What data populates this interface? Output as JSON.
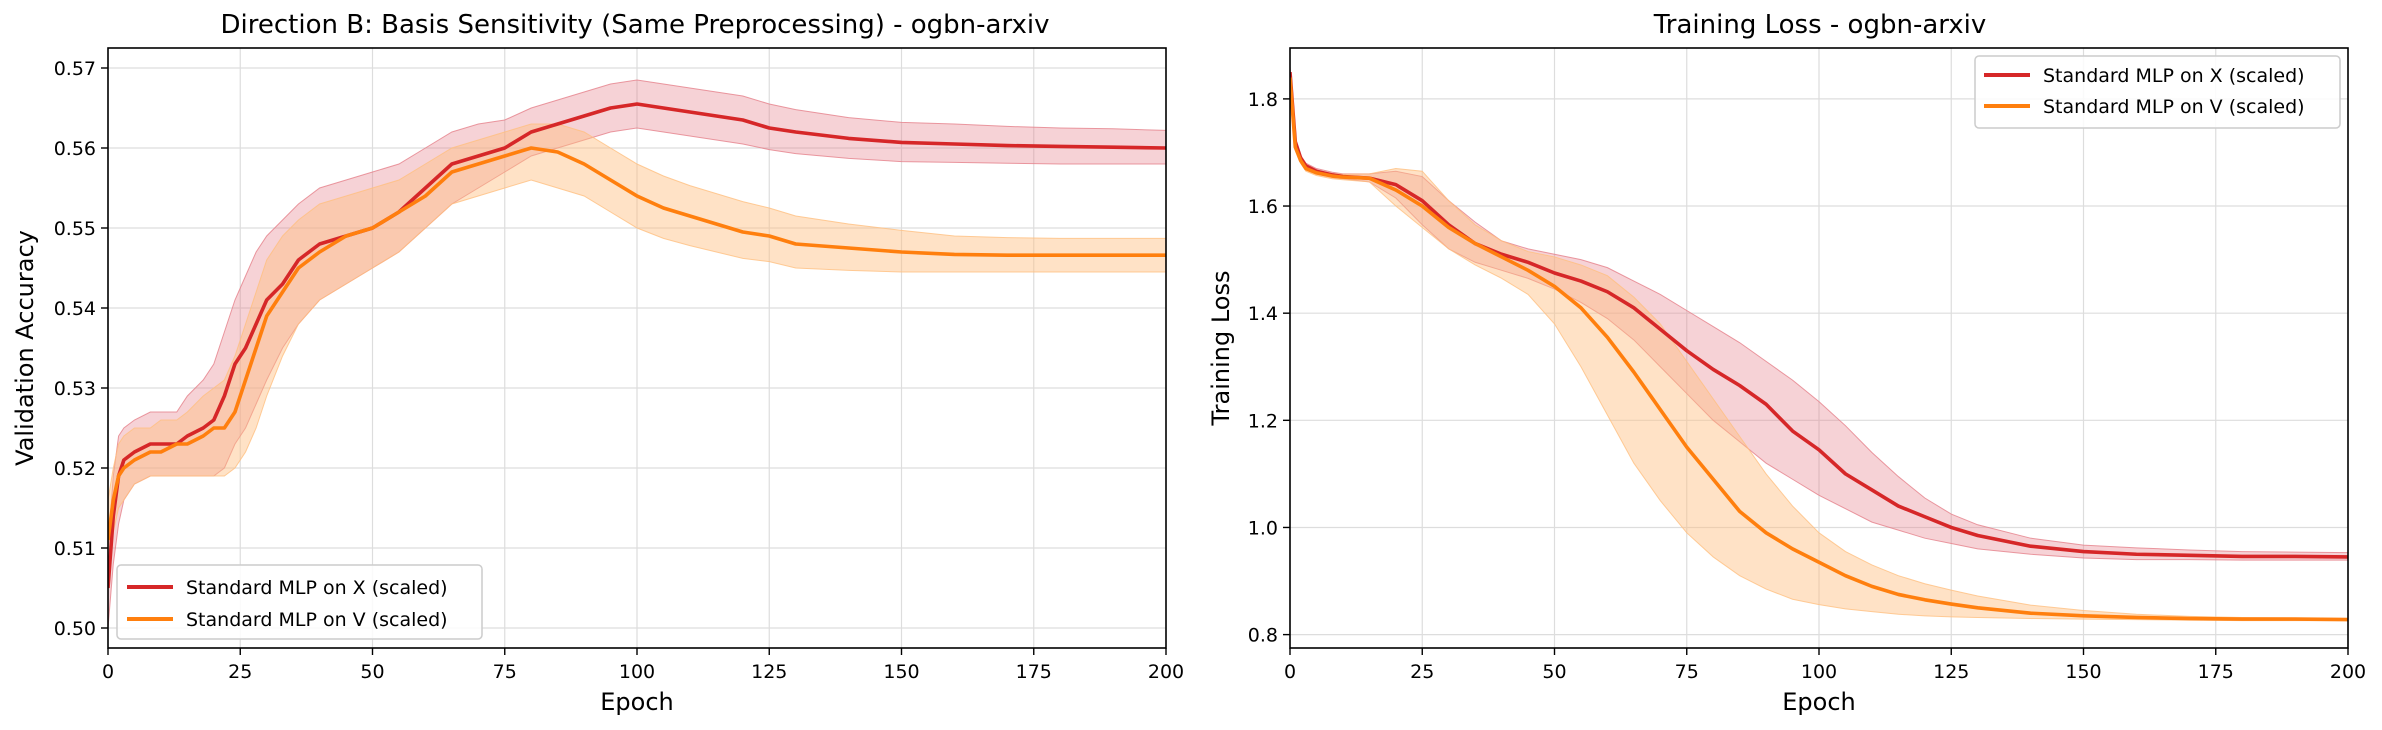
{
  "colors": {
    "x_series": "#d62728",
    "v_series": "#ff7f0e",
    "x_band": "#e57f8a",
    "v_band": "#ffbf80"
  },
  "chart_data": [
    {
      "type": "line",
      "title": "Direction B: Basis Sensitivity (Same Preprocessing) - ogbn-arxiv",
      "xlabel": "Epoch",
      "ylabel": "Validation Accuracy",
      "xlim": [
        0,
        200
      ],
      "ylim": [
        0.4975,
        0.5725
      ],
      "xticks": [
        0,
        25,
        50,
        75,
        100,
        125,
        150,
        175,
        200
      ],
      "yticks": [
        0.5,
        0.51,
        0.52,
        0.53,
        0.54,
        0.55,
        0.56,
        0.57
      ],
      "ytick_labels": [
        "0.50",
        "0.51",
        "0.52",
        "0.53",
        "0.54",
        "0.55",
        "0.56",
        "0.57"
      ],
      "grid": true,
      "legend_position": "lower-left",
      "series": [
        {
          "name": "Standard MLP on X (scaled)",
          "x": [
            0,
            1,
            2,
            3,
            5,
            8,
            10,
            13,
            15,
            18,
            20,
            22,
            24,
            26,
            28,
            30,
            33,
            36,
            40,
            45,
            50,
            55,
            60,
            65,
            70,
            75,
            80,
            85,
            90,
            95,
            100,
            105,
            110,
            115,
            120,
            125,
            130,
            140,
            150,
            160,
            170,
            180,
            190,
            200
          ],
          "y": [
            0.505,
            0.514,
            0.519,
            0.521,
            0.522,
            0.523,
            0.523,
            0.523,
            0.524,
            0.525,
            0.526,
            0.529,
            0.533,
            0.535,
            0.538,
            0.541,
            0.543,
            0.546,
            0.548,
            0.549,
            0.55,
            0.552,
            0.555,
            0.558,
            0.559,
            0.56,
            0.562,
            0.563,
            0.564,
            0.565,
            0.5655,
            0.565,
            0.5645,
            0.564,
            0.5635,
            0.5625,
            0.562,
            0.5612,
            0.5607,
            0.5605,
            0.5603,
            0.5602,
            0.5601,
            0.56
          ],
          "band_low": [
            0.5,
            0.508,
            0.513,
            0.516,
            0.518,
            0.519,
            0.519,
            0.519,
            0.519,
            0.519,
            0.519,
            0.52,
            0.523,
            0.525,
            0.528,
            0.531,
            0.535,
            0.538,
            0.541,
            0.543,
            0.545,
            0.547,
            0.55,
            0.553,
            0.555,
            0.557,
            0.559,
            0.56,
            0.561,
            0.562,
            0.5625,
            0.562,
            0.5615,
            0.561,
            0.5605,
            0.5598,
            0.5593,
            0.5587,
            0.5583,
            0.5582,
            0.5581,
            0.558,
            0.558,
            0.558
          ],
          "band_high": [
            0.51,
            0.519,
            0.524,
            0.525,
            0.526,
            0.527,
            0.527,
            0.527,
            0.529,
            0.531,
            0.533,
            0.537,
            0.541,
            0.544,
            0.547,
            0.549,
            0.551,
            0.553,
            0.555,
            0.556,
            0.557,
            0.558,
            0.56,
            0.562,
            0.563,
            0.5635,
            0.565,
            0.566,
            0.567,
            0.568,
            0.5685,
            0.568,
            0.5675,
            0.567,
            0.5665,
            0.5655,
            0.5648,
            0.5638,
            0.5632,
            0.563,
            0.5627,
            0.5625,
            0.5624,
            0.5622
          ]
        },
        {
          "name": "Standard MLP on V (scaled)",
          "x": [
            0,
            1,
            2,
            3,
            5,
            8,
            10,
            13,
            15,
            18,
            20,
            22,
            24,
            26,
            28,
            30,
            33,
            36,
            40,
            45,
            50,
            55,
            60,
            65,
            70,
            75,
            80,
            85,
            90,
            95,
            100,
            105,
            110,
            115,
            120,
            125,
            130,
            140,
            150,
            160,
            170,
            180,
            190,
            200
          ],
          "y": [
            0.511,
            0.516,
            0.519,
            0.52,
            0.521,
            0.522,
            0.522,
            0.523,
            0.523,
            0.524,
            0.525,
            0.525,
            0.527,
            0.531,
            0.535,
            0.539,
            0.542,
            0.545,
            0.547,
            0.549,
            0.55,
            0.552,
            0.554,
            0.557,
            0.558,
            0.559,
            0.56,
            0.5595,
            0.558,
            0.556,
            0.554,
            0.5525,
            0.5515,
            0.5505,
            0.5495,
            0.549,
            0.548,
            0.5475,
            0.547,
            0.5467,
            0.5466,
            0.5466,
            0.5466,
            0.5466
          ],
          "band_low": [
            0.506,
            0.512,
            0.515,
            0.516,
            0.518,
            0.519,
            0.519,
            0.519,
            0.519,
            0.519,
            0.519,
            0.519,
            0.52,
            0.522,
            0.525,
            0.529,
            0.534,
            0.538,
            0.541,
            0.543,
            0.545,
            0.547,
            0.55,
            0.553,
            0.554,
            0.555,
            0.556,
            0.555,
            0.554,
            0.552,
            0.55,
            0.5487,
            0.5478,
            0.547,
            0.5462,
            0.5458,
            0.545,
            0.5447,
            0.5445,
            0.5445,
            0.5445,
            0.5445,
            0.5445,
            0.5445
          ],
          "band_high": [
            0.516,
            0.52,
            0.523,
            0.524,
            0.525,
            0.525,
            0.526,
            0.526,
            0.527,
            0.529,
            0.53,
            0.531,
            0.534,
            0.538,
            0.542,
            0.546,
            0.549,
            0.551,
            0.553,
            0.554,
            0.555,
            0.556,
            0.558,
            0.56,
            0.561,
            0.562,
            0.563,
            0.563,
            0.562,
            0.56,
            0.558,
            0.5565,
            0.5553,
            0.5543,
            0.5533,
            0.5525,
            0.5515,
            0.5505,
            0.5497,
            0.549,
            0.5488,
            0.5487,
            0.5487,
            0.5487
          ]
        }
      ]
    },
    {
      "type": "line",
      "title": "Training Loss - ogbn-arxiv",
      "xlabel": "Epoch",
      "ylabel": "Training Loss",
      "xlim": [
        0,
        200
      ],
      "ylim": [
        0.775,
        1.895
      ],
      "xticks": [
        0,
        25,
        50,
        75,
        100,
        125,
        150,
        175,
        200
      ],
      "yticks": [
        0.8,
        1.0,
        1.2,
        1.4,
        1.6,
        1.8
      ],
      "ytick_labels": [
        "0.8",
        "1.0",
        "1.2",
        "1.4",
        "1.6",
        "1.8"
      ],
      "grid": true,
      "legend_position": "top-right",
      "series": [
        {
          "name": "Standard MLP on X (scaled)",
          "x": [
            0,
            1,
            2,
            3,
            5,
            8,
            10,
            15,
            20,
            25,
            30,
            35,
            40,
            45,
            50,
            55,
            60,
            65,
            70,
            75,
            80,
            85,
            90,
            95,
            100,
            105,
            110,
            115,
            120,
            125,
            130,
            140,
            150,
            160,
            170,
            180,
            190,
            200
          ],
          "y": [
            1.85,
            1.72,
            1.69,
            1.675,
            1.665,
            1.658,
            1.655,
            1.652,
            1.64,
            1.61,
            1.565,
            1.53,
            1.51,
            1.495,
            1.475,
            1.46,
            1.44,
            1.41,
            1.37,
            1.33,
            1.295,
            1.265,
            1.23,
            1.18,
            1.145,
            1.1,
            1.07,
            1.04,
            1.02,
            1.0,
            0.985,
            0.965,
            0.955,
            0.95,
            0.948,
            0.946,
            0.946,
            0.945
          ],
          "band_low": [
            1.84,
            1.715,
            1.685,
            1.67,
            1.66,
            1.653,
            1.651,
            1.645,
            1.615,
            1.565,
            1.52,
            1.495,
            1.48,
            1.465,
            1.445,
            1.42,
            1.39,
            1.35,
            1.3,
            1.25,
            1.2,
            1.16,
            1.12,
            1.09,
            1.06,
            1.035,
            1.01,
            0.995,
            0.98,
            0.97,
            0.96,
            0.95,
            0.943,
            0.94,
            0.94,
            0.939,
            0.939,
            0.939
          ],
          "band_high": [
            1.86,
            1.725,
            1.695,
            1.68,
            1.67,
            1.663,
            1.66,
            1.66,
            1.665,
            1.655,
            1.61,
            1.57,
            1.535,
            1.52,
            1.51,
            1.5,
            1.485,
            1.46,
            1.435,
            1.405,
            1.375,
            1.345,
            1.31,
            1.275,
            1.235,
            1.19,
            1.14,
            1.095,
            1.055,
            1.025,
            1.005,
            0.98,
            0.967,
            0.962,
            0.958,
            0.955,
            0.954,
            0.953
          ]
        },
        {
          "name": "Standard MLP on V (scaled)",
          "x": [
            0,
            1,
            2,
            3,
            5,
            8,
            10,
            15,
            20,
            25,
            30,
            35,
            40,
            45,
            50,
            55,
            60,
            65,
            70,
            75,
            80,
            85,
            90,
            95,
            100,
            105,
            110,
            115,
            120,
            125,
            130,
            140,
            150,
            160,
            170,
            180,
            190,
            200
          ],
          "y": [
            1.84,
            1.71,
            1.685,
            1.67,
            1.662,
            1.656,
            1.654,
            1.652,
            1.63,
            1.6,
            1.56,
            1.53,
            1.505,
            1.48,
            1.45,
            1.41,
            1.355,
            1.29,
            1.22,
            1.15,
            1.09,
            1.03,
            0.99,
            0.96,
            0.935,
            0.91,
            0.89,
            0.875,
            0.865,
            0.857,
            0.85,
            0.84,
            0.835,
            0.832,
            0.83,
            0.829,
            0.829,
            0.828
          ],
          "band_low": [
            1.83,
            1.705,
            1.68,
            1.665,
            1.657,
            1.651,
            1.649,
            1.645,
            1.6,
            1.56,
            1.52,
            1.49,
            1.465,
            1.435,
            1.38,
            1.3,
            1.21,
            1.12,
            1.05,
            0.99,
            0.945,
            0.91,
            0.885,
            0.866,
            0.856,
            0.848,
            0.843,
            0.838,
            0.835,
            0.833,
            0.832,
            0.83,
            0.829,
            0.828,
            0.827,
            0.826,
            0.826,
            0.826
          ],
          "band_high": [
            1.85,
            1.715,
            1.69,
            1.675,
            1.667,
            1.661,
            1.659,
            1.66,
            1.67,
            1.665,
            1.61,
            1.565,
            1.535,
            1.515,
            1.505,
            1.49,
            1.47,
            1.43,
            1.38,
            1.31,
            1.24,
            1.17,
            1.1,
            1.04,
            0.99,
            0.955,
            0.93,
            0.91,
            0.895,
            0.883,
            0.872,
            0.855,
            0.845,
            0.838,
            0.834,
            0.832,
            0.831,
            0.83
          ]
        }
      ]
    }
  ]
}
